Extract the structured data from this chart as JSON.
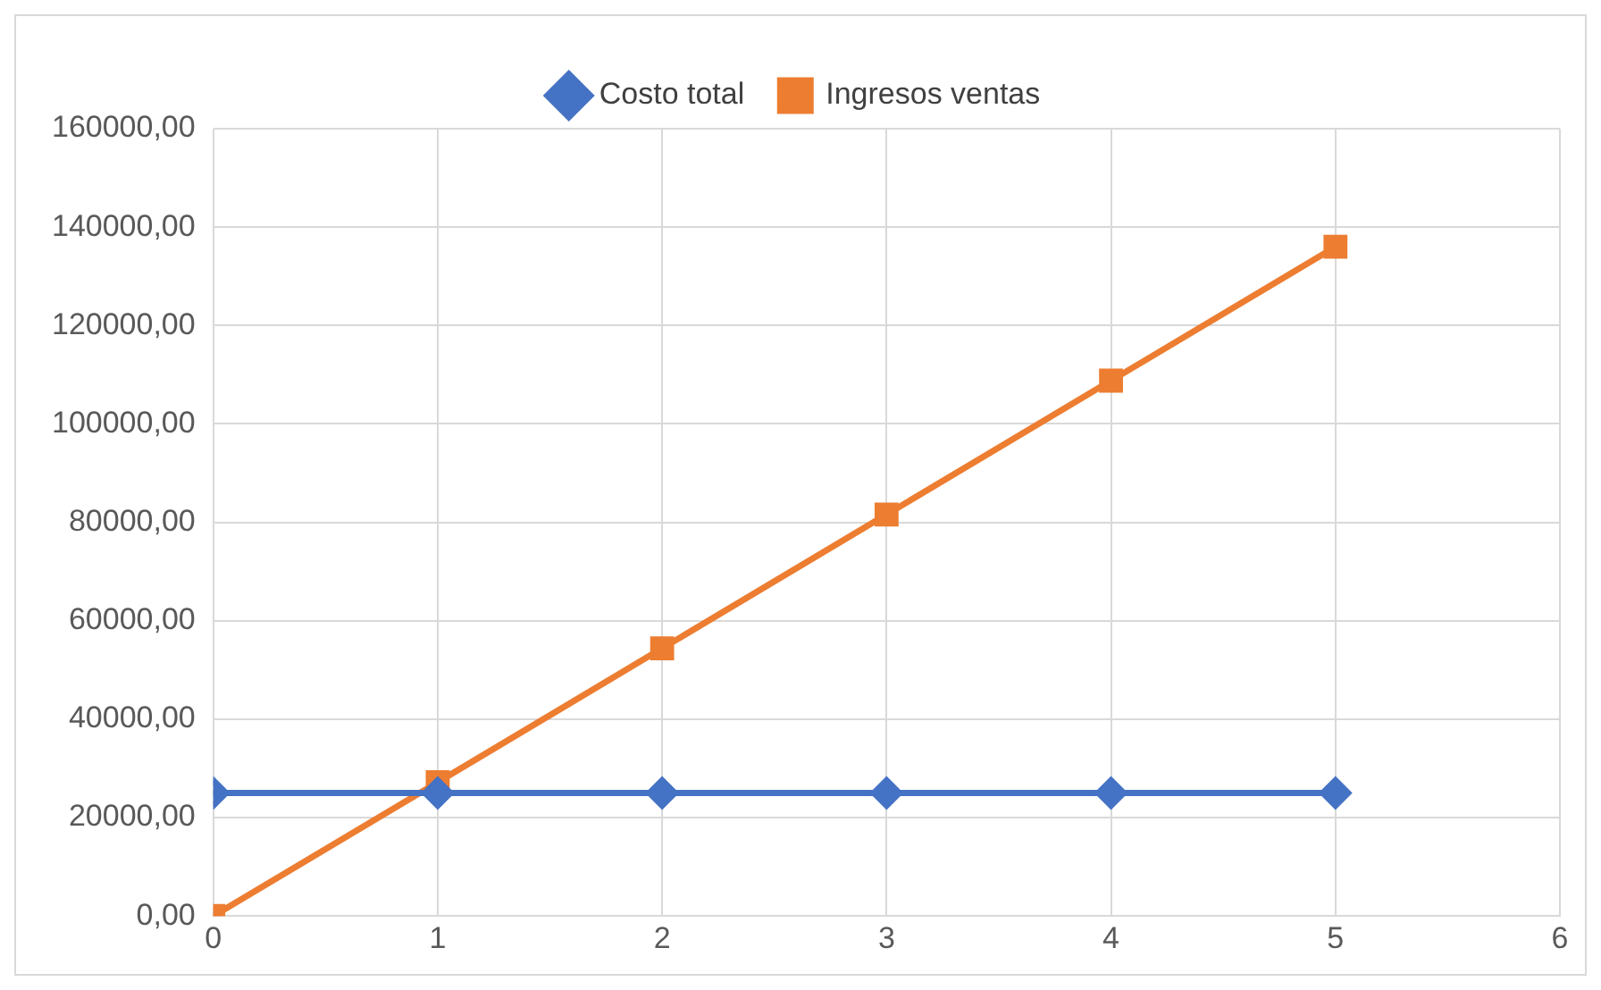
{
  "chart_data": {
    "type": "line",
    "x": [
      0,
      1,
      2,
      3,
      4,
      5
    ],
    "series": [
      {
        "name": "Costo total",
        "color": "#4472c4",
        "marker": "diamond",
        "values": [
          25000,
          25000,
          25000,
          25000,
          25000,
          25000
        ]
      },
      {
        "name": "Ingresos ventas",
        "color": "#ed7d31",
        "marker": "square",
        "values": [
          0,
          27200,
          54400,
          81600,
          108800,
          136000
        ]
      }
    ],
    "xlim": [
      0,
      6
    ],
    "xticks": [
      0,
      1,
      2,
      3,
      4,
      5,
      6
    ],
    "ylim": [
      0,
      160000
    ],
    "yticks": [
      {
        "value": 0,
        "label": "0,00"
      },
      {
        "value": 20000,
        "label": "20000,00"
      },
      {
        "value": 40000,
        "label": "40000,00"
      },
      {
        "value": 60000,
        "label": "60000,00"
      },
      {
        "value": 80000,
        "label": "80000,00"
      },
      {
        "value": 100000,
        "label": "100000,00"
      },
      {
        "value": 120000,
        "label": "120000,00"
      },
      {
        "value": 140000,
        "label": "140000,00"
      },
      {
        "value": 160000,
        "label": "160000,00"
      }
    ],
    "grid": true,
    "legend": "top",
    "line_style": "solid"
  }
}
